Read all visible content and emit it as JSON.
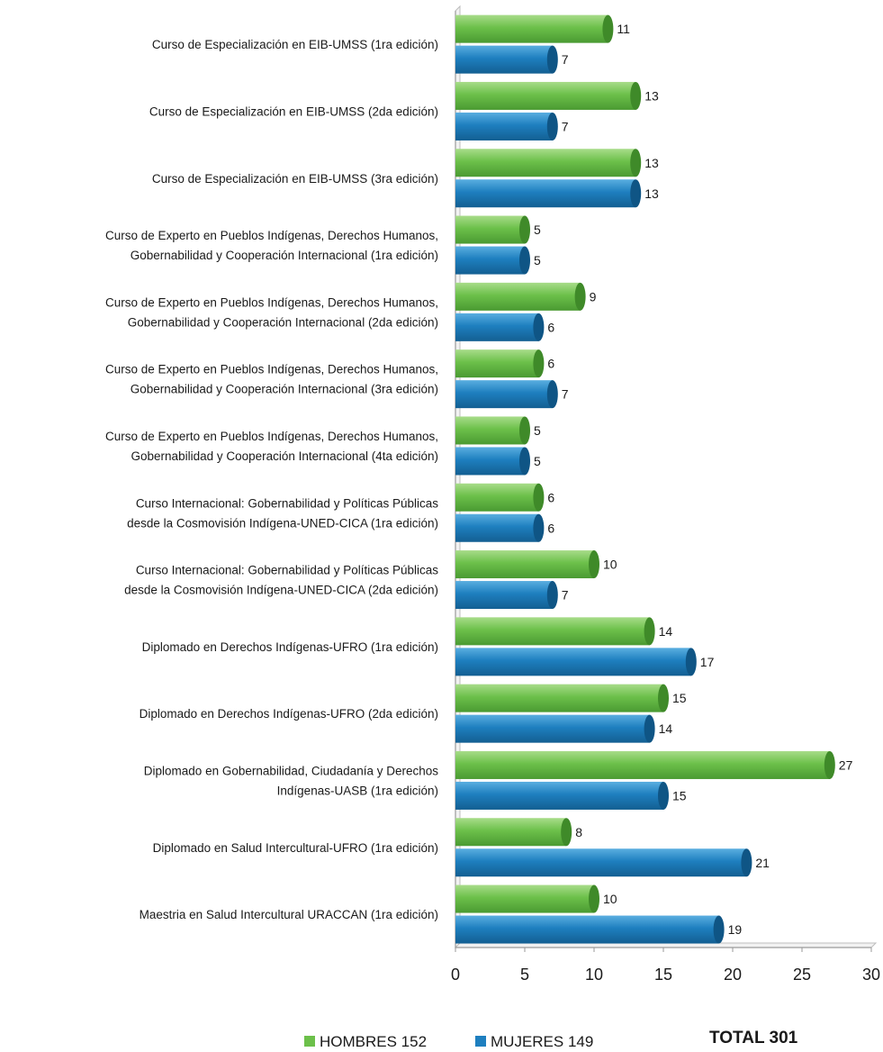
{
  "chart_data": {
    "type": "bar",
    "orientation": "horizontal",
    "categories": [
      [
        "Curso de Especialización en EIB-UMSS (1ra edición)"
      ],
      [
        "Curso de Especialización en EIB-UMSS (2da edición)"
      ],
      [
        "Curso de Especialización en EIB-UMSS (3ra edición)"
      ],
      [
        "Curso de Experto en Pueblos Indígenas, Derechos Humanos,",
        "Gobernabilidad y Cooperación Internacional (1ra edición)"
      ],
      [
        "Curso de Experto en Pueblos Indígenas, Derechos Humanos,",
        "Gobernabilidad y Cooperación Internacional (2da edición)"
      ],
      [
        "Curso de Experto en Pueblos Indígenas, Derechos Humanos,",
        "Gobernabilidad y Cooperación Internacional (3ra edición)"
      ],
      [
        "Curso de Experto en Pueblos Indígenas, Derechos Humanos,",
        "Gobernabilidad y Cooperación Internacional (4ta edición)"
      ],
      [
        "Curso Internacional: Gobernabilidad y Políticas Públicas",
        "desde la Cosmovisión Indígena-UNED-CICA (1ra edición)"
      ],
      [
        "Curso Internacional: Gobernabilidad y Políticas Públicas",
        "desde la Cosmovisión Indígena-UNED-CICA (2da edición)"
      ],
      [
        "Diplomado en Derechos Indígenas-UFRO (1ra edición)"
      ],
      [
        "Diplomado en Derechos Indígenas-UFRO (2da edición)"
      ],
      [
        "Diplomado en Gobernabilidad, Ciudadanía y Derechos",
        "Indígenas-UASB (1ra edición)"
      ],
      [
        "Diplomado en Salud Intercultural-UFRO (1ra edición)"
      ],
      [
        "Maestria en Salud Intercultural URACCAN (1ra edición)"
      ]
    ],
    "series": [
      {
        "name": "HOMBRES 152",
        "color": "#6cc04a",
        "values": [
          11,
          13,
          13,
          5,
          9,
          6,
          5,
          6,
          10,
          14,
          15,
          27,
          8,
          10
        ]
      },
      {
        "name": "MUJERES 149",
        "color": "#1e7fbf",
        "values": [
          7,
          7,
          13,
          5,
          6,
          7,
          5,
          6,
          7,
          17,
          14,
          15,
          21,
          19
        ]
      }
    ],
    "x_ticks": [
      "0",
      "5",
      "10",
      "15",
      "20",
      "25",
      "30"
    ],
    "xlim": [
      0,
      30
    ],
    "grid": false,
    "legend_position": "bottom",
    "total_label": "TOTAL 301"
  }
}
